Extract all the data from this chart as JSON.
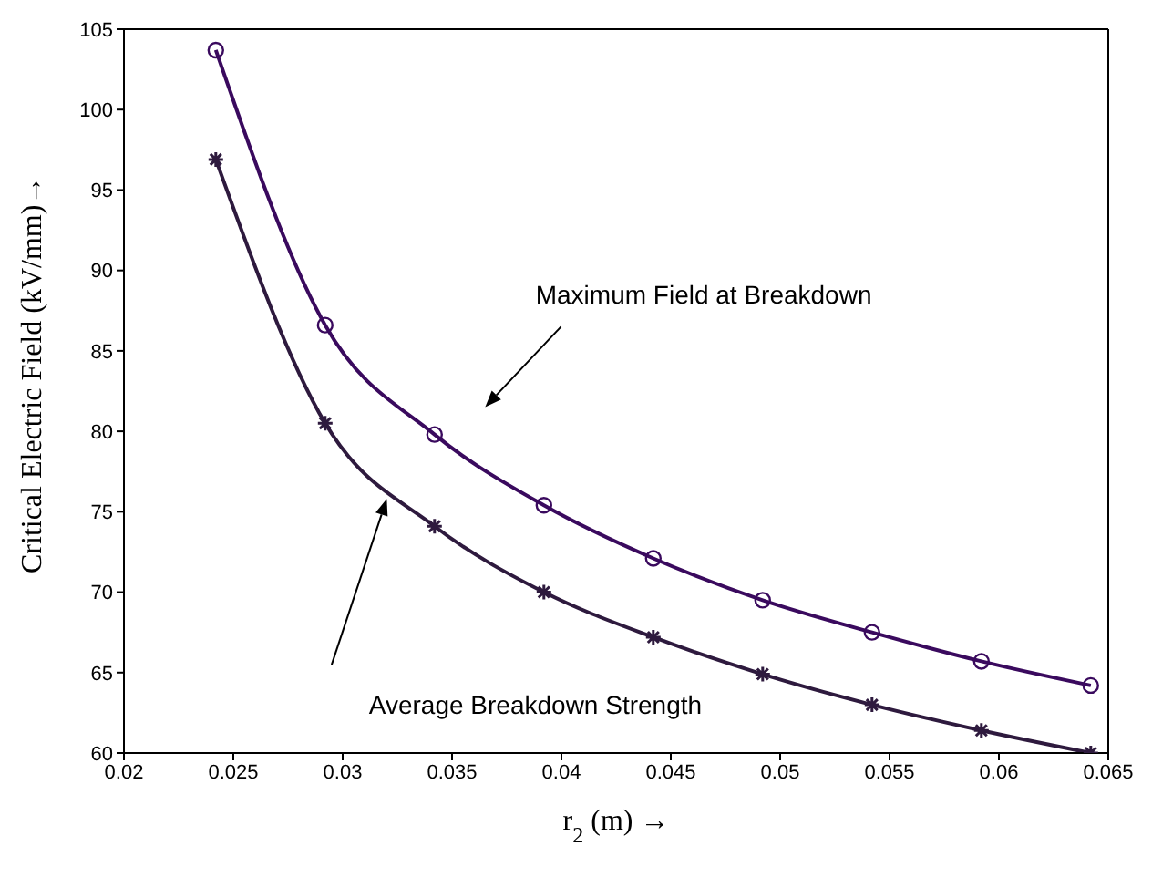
{
  "chart_data": {
    "type": "line",
    "xlabel": "r$_{2}$ (m) →",
    "ylabel": "Critical Electric Field (kV/mm)→",
    "x": [
      0.0242,
      0.0292,
      0.0342,
      0.0392,
      0.0442,
      0.0492,
      0.0542,
      0.0592,
      0.0642
    ],
    "series": [
      {
        "color": "#3a0a5e",
        "marker": "circle",
        "values": [
          103.7,
          86.6,
          79.8,
          75.4,
          72.1,
          69.5,
          67.5,
          65.7,
          64.2
        ]
      },
      {
        "color": "#2e1a3e",
        "marker": "cross",
        "values": [
          96.9,
          80.5,
          74.1,
          70.0,
          67.2,
          64.9,
          63.0,
          61.4,
          60.0
        ]
      }
    ],
    "xlim": [
      0.02,
      0.065
    ],
    "xticks": [
      0.02,
      0.025,
      0.03,
      0.035,
      0.04,
      0.045,
      0.05,
      0.055,
      0.06,
      0.065
    ],
    "ylim": [
      60,
      105
    ],
    "yticks": [
      60,
      65,
      70,
      75,
      80,
      85,
      90,
      95,
      100,
      105
    ],
    "grid": false,
    "legend": false,
    "line_style": "solid",
    "annotations": [
      "Maximum Field at Breakdown",
      "Average Breakdown Strength"
    ]
  }
}
